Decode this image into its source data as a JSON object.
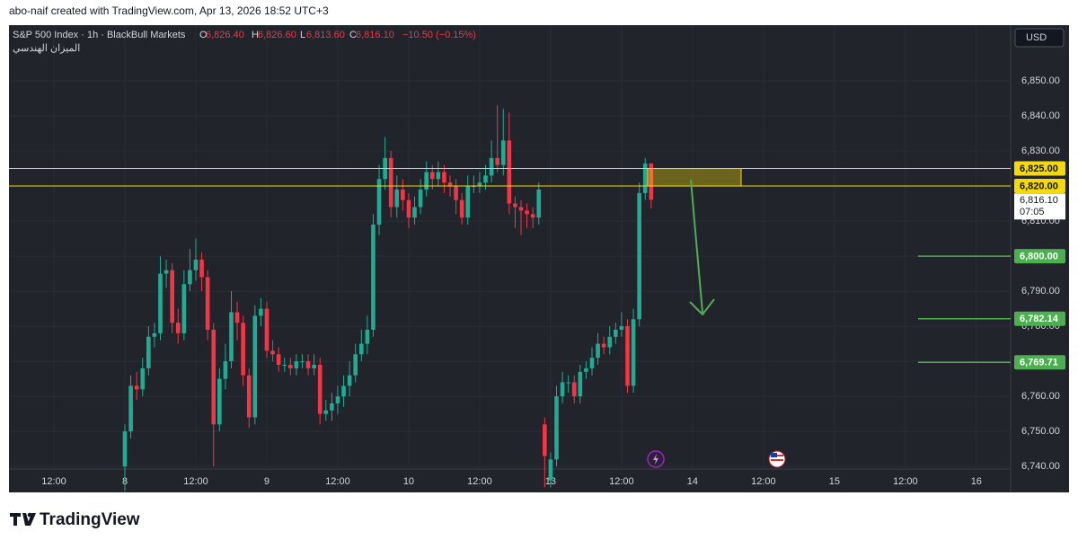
{
  "header": {
    "attribution": "abo-naif created with TradingView.com, Apr 13, 2026 18:52 UTC+3"
  },
  "chart_data": {
    "type": "candlestick",
    "title": "S&P 500 Index · 1h · BlackBull Markets",
    "subtitle": "الميزان الهندسي",
    "ohlc_legend": [
      {
        "key": "O",
        "value": "6,826.40"
      },
      {
        "key": "H",
        "value": "6,826.60"
      },
      {
        "key": "L",
        "value": "6,813.60"
      },
      {
        "key": "C",
        "value": "6,816.10"
      }
    ],
    "change": "−10.50 (−0.15%)",
    "currency": "USD",
    "up_color": "#22ab94",
    "down_color": "#f23645",
    "open": [
      6740,
      6750,
      6763,
      6762,
      6768,
      6777,
      6778,
      6795,
      6796,
      6781,
      6778,
      6792,
      6796,
      6799,
      6794,
      6779,
      6752,
      6765,
      6770,
      6784,
      6781,
      6766,
      6754,
      6783,
      6785,
      6773,
      6772,
      6769,
      6769,
      6768,
      6770,
      6770,
      6768,
      6769,
      6755,
      6756,
      6758,
      6760,
      6763,
      6766,
      6772,
      6775,
      6779,
      6809,
      6822,
      6828,
      6814,
      6819,
      6816,
      6811,
      6814,
      6819,
      6824,
      6822,
      6824,
      6821,
      6820,
      6816,
      6811,
      6820,
      6820,
      6821,
      6823,
      6828,
      6826,
      6833,
      6815,
      6814,
      6813,
      6812,
      6811,
      6752,
      6736,
      6742,
      6760,
      6764,
      6764,
      6760,
      6767,
      6768,
      6771,
      6775,
      6774,
      6777,
      6779,
      6780,
      6763,
      6782,
      6818,
      6826.4
    ],
    "high": [
      6752,
      6766,
      6767,
      6771,
      6780,
      6781,
      6800,
      6799,
      6798,
      6785,
      6796,
      6802,
      6805,
      6801,
      6796,
      6781,
      6768,
      6775,
      6790,
      6787,
      6783,
      6768,
      6786,
      6788,
      6787,
      6776,
      6774,
      6771,
      6771,
      6772,
      6772,
      6772,
      6772,
      6771,
      6759,
      6761,
      6763,
      6766,
      6770,
      6775,
      6779,
      6783,
      6812,
      6826,
      6834,
      6830,
      6823,
      6822,
      6818,
      6817,
      6822,
      6827,
      6826,
      6827,
      6826,
      6823,
      6822,
      6818,
      6823,
      6823,
      6824,
      6826,
      6833,
      6843,
      6842,
      6841,
      6817,
      6816,
      6815,
      6814,
      6821,
      6754,
      6744,
      6763,
      6767,
      6766,
      6766,
      6769,
      6770,
      6774,
      6778,
      6777,
      6780,
      6781,
      6784,
      6782,
      6785,
      6821,
      6828,
      6826.6
    ],
    "low": [
      6733,
      6748,
      6759,
      6760,
      6766,
      6774,
      6776,
      6791,
      6778,
      6775,
      6776,
      6790,
      6793,
      6790,
      6776,
      6740,
      6750,
      6762,
      6768,
      6776,
      6763,
      6751,
      6752,
      6780,
      6771,
      6770,
      6767,
      6767,
      6766,
      6766,
      6768,
      6766,
      6766,
      6752,
      6753,
      6753,
      6755,
      6757,
      6760,
      6764,
      6770,
      6772,
      6777,
      6806,
      6819,
      6811,
      6811,
      6813,
      6808,
      6809,
      6812,
      6817,
      6819,
      6820,
      6818,
      6817,
      6812,
      6809,
      6809,
      6818,
      6818,
      6819,
      6821,
      6824,
      6823,
      6812,
      6808,
      6806,
      6808,
      6808,
      6809,
      6734,
      6734,
      6740,
      6758,
      6761,
      6758,
      6758,
      6765,
      6766,
      6769,
      6772,
      6772,
      6775,
      6777,
      6761,
      6761,
      6780,
      6816,
      6813.6
    ],
    "close": [
      6750,
      6763,
      6762,
      6768,
      6777,
      6778,
      6795,
      6796,
      6781,
      6778,
      6792,
      6796,
      6799,
      6794,
      6779,
      6752,
      6765,
      6770,
      6784,
      6781,
      6766,
      6754,
      6783,
      6785,
      6773,
      6772,
      6769,
      6769,
      6768,
      6770,
      6770,
      6768,
      6769,
      6755,
      6756,
      6758,
      6760,
      6763,
      6766,
      6772,
      6775,
      6779,
      6809,
      6822,
      6828,
      6814,
      6819,
      6816,
      6811,
      6814,
      6819,
      6824,
      6822,
      6824,
      6821,
      6820,
      6816,
      6811,
      6820,
      6820,
      6821,
      6823,
      6828,
      6826,
      6833,
      6815,
      6814,
      6813,
      6812,
      6811,
      6819,
      6743,
      6742,
      6760,
      6764,
      6764,
      6760,
      6767,
      6768,
      6771,
      6775,
      6774,
      6777,
      6779,
      6780,
      6763,
      6782,
      6818,
      6826.4,
      6816.1
    ],
    "xlim": [
      -19.6,
      149.8
    ],
    "xticks": [
      {
        "value": -12,
        "label": "12:00"
      },
      {
        "value": 0,
        "label": "8"
      },
      {
        "value": 12,
        "label": "12:00"
      },
      {
        "value": 24,
        "label": "9"
      },
      {
        "value": 36,
        "label": "12:00"
      },
      {
        "value": 48,
        "label": "10"
      },
      {
        "value": 60,
        "label": "12:00"
      },
      {
        "value": 72,
        "label": "13"
      },
      {
        "value": 84,
        "label": "12:00"
      },
      {
        "value": 96,
        "label": "14"
      },
      {
        "value": 108,
        "label": "12:00"
      },
      {
        "value": 120,
        "label": "15"
      },
      {
        "value": 132,
        "label": "12:00"
      },
      {
        "value": 144,
        "label": "16"
      }
    ],
    "ylim": [
      6732.6,
      6865.9
    ],
    "yticks": [
      {
        "value": 6740,
        "label": "6,740.00"
      },
      {
        "value": 6750,
        "label": "6,750.00"
      },
      {
        "value": 6760,
        "label": "6,760.00"
      },
      {
        "value": 6770,
        "label": "6,770.00"
      },
      {
        "value": 6780,
        "label": "6,780.00"
      },
      {
        "value": 6790,
        "label": "6,790.00"
      },
      {
        "value": 6800,
        "label": "6,800.00"
      },
      {
        "value": 6810,
        "label": "6,810.00"
      },
      {
        "value": 6820,
        "label": "6,820.00"
      },
      {
        "value": 6830,
        "label": "6,830.00"
      },
      {
        "value": 6840,
        "label": "6,840.00"
      },
      {
        "value": 6850,
        "label": "6,850.00"
      }
    ],
    "levels": [
      {
        "value": 6825,
        "label": "6,825.00",
        "color": "#f5d90a",
        "text_color": "#131722"
      },
      {
        "value": 6820,
        "label": "6,820.00",
        "color": "#f5d90a",
        "text_color": "#131722"
      },
      {
        "value": 6800,
        "label": "6,800.00",
        "color": "#4caf50",
        "text_color": "#ffffff"
      },
      {
        "value": 6782.14,
        "label": "6,782.14",
        "color": "#4caf50",
        "text_color": "#ffffff"
      },
      {
        "value": 6769.71,
        "label": "6,769.71",
        "color": "#4caf50",
        "text_color": "#ffffff"
      }
    ],
    "last_price": {
      "value": 6816.1,
      "label": "6,816.10",
      "countdown": "07:05"
    }
  },
  "footer": {
    "brand": "TradingView"
  }
}
